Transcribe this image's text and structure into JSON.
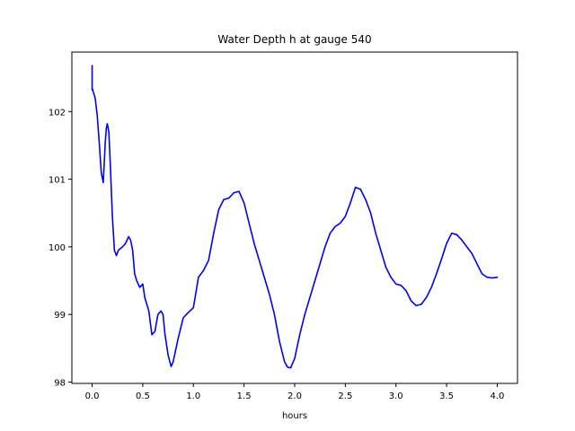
{
  "chart_data": {
    "type": "line",
    "title": "Water Depth h at gauge 540",
    "xlabel": "hours",
    "ylabel": "",
    "xlim": [
      -0.2,
      4.2
    ],
    "ylim": [
      97.98,
      102.88
    ],
    "xticks": [
      0.0,
      0.5,
      1.0,
      1.5,
      2.0,
      2.5,
      3.0,
      3.5,
      4.0
    ],
    "xtick_labels": [
      "0.0",
      "0.5",
      "1.0",
      "1.5",
      "2.0",
      "2.5",
      "3.0",
      "3.5",
      "4.0"
    ],
    "yticks": [
      98,
      99,
      100,
      101,
      102
    ],
    "ytick_labels": [
      "98",
      "99",
      "100",
      "101",
      "102"
    ],
    "grid": false,
    "series": [
      {
        "color": "#0000ff",
        "x": [
          0.0,
          0.0,
          0.005,
          0.01,
          0.03,
          0.05,
          0.07,
          0.09,
          0.11,
          0.13,
          0.14,
          0.15,
          0.165,
          0.18,
          0.2,
          0.22,
          0.24,
          0.26,
          0.3,
          0.33,
          0.36,
          0.38,
          0.4,
          0.42,
          0.44,
          0.47,
          0.5,
          0.52,
          0.54,
          0.56,
          0.59,
          0.62,
          0.65,
          0.68,
          0.7,
          0.72,
          0.75,
          0.78,
          0.8,
          0.85,
          0.9,
          0.95,
          1.0,
          1.05,
          1.1,
          1.15,
          1.2,
          1.25,
          1.3,
          1.35,
          1.4,
          1.45,
          1.5,
          1.55,
          1.6,
          1.65,
          1.7,
          1.75,
          1.8,
          1.85,
          1.9,
          1.93,
          1.96,
          2.0,
          2.05,
          2.1,
          2.15,
          2.2,
          2.25,
          2.3,
          2.35,
          2.4,
          2.45,
          2.5,
          2.55,
          2.6,
          2.65,
          2.7,
          2.75,
          2.8,
          2.85,
          2.9,
          2.95,
          3.0,
          3.05,
          3.1,
          3.15,
          3.2,
          3.25,
          3.3,
          3.35,
          3.4,
          3.45,
          3.5,
          3.55,
          3.6,
          3.65,
          3.7,
          3.75,
          3.8,
          3.85,
          3.9,
          3.95,
          4.0
        ],
        "y": [
          102.68,
          102.32,
          102.33,
          102.3,
          102.2,
          101.95,
          101.55,
          101.1,
          100.95,
          101.55,
          101.75,
          101.82,
          101.7,
          101.2,
          100.45,
          99.95,
          99.87,
          99.95,
          100.0,
          100.05,
          100.15,
          100.1,
          99.95,
          99.6,
          99.5,
          99.4,
          99.45,
          99.25,
          99.15,
          99.05,
          98.7,
          98.75,
          99.0,
          99.05,
          99.0,
          98.7,
          98.4,
          98.23,
          98.3,
          98.65,
          98.95,
          99.03,
          99.1,
          99.55,
          99.65,
          99.8,
          100.2,
          100.55,
          100.7,
          100.72,
          100.8,
          100.82,
          100.65,
          100.35,
          100.05,
          99.8,
          99.55,
          99.3,
          99.0,
          98.6,
          98.3,
          98.22,
          98.21,
          98.35,
          98.7,
          99.0,
          99.25,
          99.5,
          99.75,
          100.0,
          100.2,
          100.3,
          100.35,
          100.45,
          100.65,
          100.88,
          100.85,
          100.7,
          100.5,
          100.2,
          99.95,
          99.7,
          99.55,
          99.45,
          99.43,
          99.35,
          99.2,
          99.13,
          99.15,
          99.25,
          99.4,
          99.6,
          99.82,
          100.05,
          100.2,
          100.18,
          100.1,
          100.0,
          99.9,
          99.75,
          99.6,
          99.55,
          99.54,
          99.55
        ]
      }
    ]
  }
}
